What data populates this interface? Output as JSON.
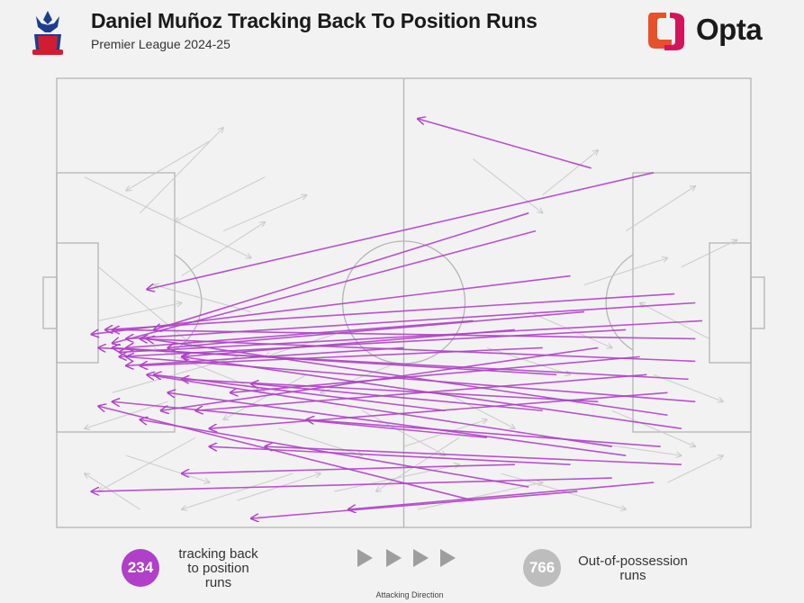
{
  "header": {
    "title": "Daniel Muñoz Tracking Back To Position Runs",
    "subtitle": "Premier League 2024-25",
    "crest_icon": "crystal-palace-crest-icon",
    "brand_logo": "Opta",
    "brand_colors": [
      "#e8502a",
      "#f5a623",
      "#d4145a"
    ]
  },
  "legend": {
    "tracking_count": "234",
    "tracking_label_lines": [
      "tracking back",
      "to position",
      "runs"
    ],
    "tracking_color": "#b040c8",
    "oop_count": "766",
    "oop_label_lines": [
      "Out-of-possession",
      "runs"
    ],
    "oop_color": "#bdbdbd",
    "direction_label": "Attacking Direction",
    "direction_icon": "play-arrow-icon"
  },
  "chart_data": {
    "type": "scatter",
    "description_kind": "arrow map on football pitch; each run = start (x,y) -> end (x,y) in 0-100 pitch units, x toward attacking direction",
    "attacking_direction": "left-to-right",
    "series": [
      {
        "name": "tracking back to position runs",
        "color": "#b040c8",
        "count": 234,
        "runs": [
          [
            77,
            20,
            52,
            9
          ],
          [
            86,
            21,
            13,
            47
          ],
          [
            68,
            30,
            14,
            56
          ],
          [
            69,
            34,
            8,
            59
          ],
          [
            74,
            44,
            5,
            57
          ],
          [
            89,
            48,
            7,
            56
          ],
          [
            92,
            50,
            10,
            58
          ],
          [
            93,
            54,
            9,
            61
          ],
          [
            92,
            58,
            8,
            56
          ],
          [
            92,
            63,
            12,
            58
          ],
          [
            91,
            67,
            6,
            60
          ],
          [
            92,
            72,
            10,
            62
          ],
          [
            88,
            75,
            13,
            58
          ],
          [
            90,
            78,
            18,
            62
          ],
          [
            80,
            82,
            13,
            66
          ],
          [
            82,
            84,
            16,
            70
          ],
          [
            80,
            89,
            5,
            92
          ],
          [
            75,
            92,
            28,
            98
          ],
          [
            68,
            91,
            12,
            76
          ],
          [
            60,
            94,
            6,
            73
          ],
          [
            78,
            72,
            18,
            67
          ],
          [
            72,
            66,
            8,
            60
          ],
          [
            70,
            60,
            12,
            64
          ],
          [
            85,
            66,
            20,
            74
          ],
          [
            88,
            70,
            22,
            78
          ],
          [
            66,
            56,
            18,
            62
          ],
          [
            60,
            54,
            10,
            60
          ],
          [
            84,
            62,
            25,
            70
          ],
          [
            90,
            86,
            30,
            82
          ],
          [
            78,
            60,
            15,
            74
          ],
          [
            74,
            86,
            22,
            82
          ],
          [
            56,
            74,
            14,
            66
          ],
          [
            62,
            80,
            8,
            72
          ],
          [
            86,
            90,
            42,
            96
          ],
          [
            50,
            60,
            10,
            64
          ],
          [
            82,
            56,
            9,
            62
          ],
          [
            76,
            52,
            16,
            60
          ],
          [
            66,
            86,
            18,
            88
          ],
          [
            70,
            74,
            28,
            68
          ],
          [
            87,
            82,
            36,
            76
          ]
        ]
      },
      {
        "name": "Out-of-possession runs",
        "color": "#c8c8c8",
        "count": 766,
        "runs": [
          [
            4,
            22,
            28,
            40
          ],
          [
            12,
            30,
            24,
            11
          ],
          [
            6,
            42,
            20,
            60
          ],
          [
            14,
            60,
            30,
            70
          ],
          [
            22,
            14,
            10,
            25
          ],
          [
            30,
            22,
            17,
            32
          ],
          [
            8,
            70,
            26,
            62
          ],
          [
            20,
            80,
            6,
            92
          ],
          [
            34,
            88,
            18,
            96
          ],
          [
            40,
            92,
            58,
            86
          ],
          [
            52,
            96,
            70,
            90
          ],
          [
            64,
            88,
            82,
            96
          ],
          [
            72,
            80,
            90,
            84
          ],
          [
            86,
            66,
            96,
            72
          ],
          [
            94,
            58,
            84,
            50
          ],
          [
            90,
            42,
            98,
            36
          ],
          [
            82,
            34,
            92,
            24
          ],
          [
            70,
            26,
            78,
            16
          ],
          [
            60,
            18,
            70,
            30
          ],
          [
            28,
            52,
            14,
            46
          ],
          [
            18,
            44,
            30,
            32
          ],
          [
            36,
            66,
            24,
            76
          ],
          [
            44,
            74,
            56,
            84
          ],
          [
            48,
            64,
            38,
            70
          ],
          [
            56,
            70,
            66,
            78
          ],
          [
            62,
            60,
            74,
            66
          ],
          [
            68,
            52,
            80,
            60
          ],
          [
            76,
            46,
            88,
            40
          ],
          [
            10,
            84,
            22,
            90
          ],
          [
            26,
            94,
            38,
            88
          ],
          [
            12,
            96,
            4,
            88
          ],
          [
            80,
            74,
            92,
            82
          ],
          [
            88,
            90,
            96,
            84
          ],
          [
            58,
            80,
            46,
            92
          ],
          [
            32,
            78,
            44,
            84
          ],
          [
            16,
            72,
            4,
            78
          ],
          [
            24,
            34,
            36,
            26
          ],
          [
            6,
            54,
            18,
            50
          ],
          [
            42,
            56,
            30,
            62
          ],
          [
            50,
            82,
            62,
            76
          ]
        ]
      }
    ],
    "xlim": [
      0,
      100
    ],
    "ylim": [
      0,
      100
    ],
    "grid": false
  }
}
